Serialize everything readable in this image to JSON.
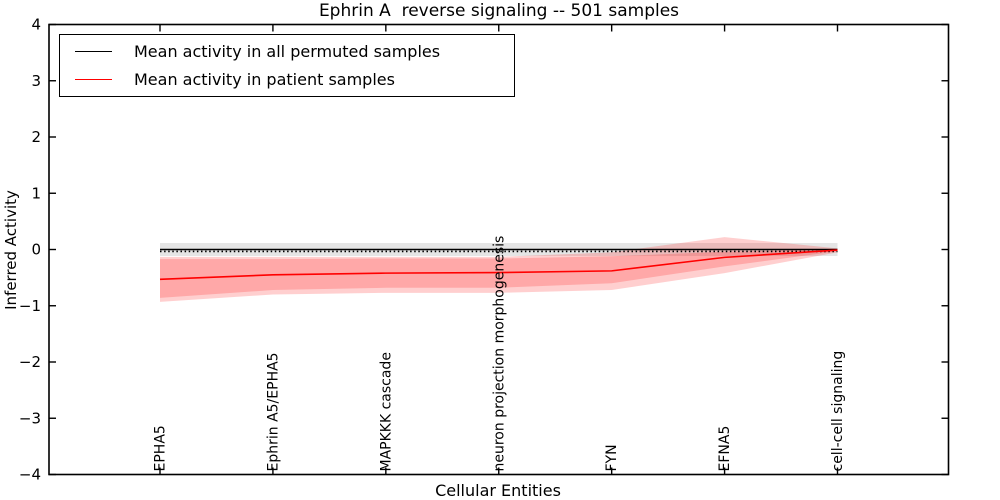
{
  "figure": {
    "title": "Ephrin A  reverse signaling -- 501 samples",
    "xlabel": "Cellular Entities",
    "ylabel": "Inferred Activity"
  },
  "legend": {
    "position": "upper left",
    "items": [
      {
        "label": "Mean activity in all permuted samples",
        "color": "#000000"
      },
      {
        "label": "Mean activity in patient samples",
        "color": "#ff0000"
      }
    ]
  },
  "chart_data": {
    "type": "line",
    "title": "Ephrin A  reverse signaling -- 501 samples",
    "xlabel": "Cellular Entities",
    "ylabel": "Inferred Activity",
    "categories": [
      "EPHA5",
      "Ephrin A5/EPHA5",
      "MAPKKK cascade",
      "neuron projection morphogenesis",
      "FYN",
      "EFNA5",
      "cell-cell signaling"
    ],
    "ylim": [
      -4,
      4
    ],
    "yticks": [
      -4,
      -3,
      -2,
      -1,
      0,
      1,
      2,
      3,
      4
    ],
    "ytick_labels": [
      "−4",
      "−3",
      "−2",
      "−1",
      "0",
      "1",
      "2",
      "3",
      "4"
    ],
    "grid": false,
    "legend_position": "upper left",
    "series": [
      {
        "name": "Mean activity in all permuted samples",
        "color": "#000000",
        "style": "solid",
        "values": [
          0,
          0,
          0,
          0,
          0,
          0,
          0
        ]
      },
      {
        "name": "permuted dotted guide",
        "color": "#000000",
        "style": "dotted",
        "values": [
          -0.035,
          -0.035,
          -0.035,
          -0.035,
          -0.035,
          -0.035,
          -0.035
        ]
      },
      {
        "name": "Mean activity in patient samples",
        "color": "#ff0000",
        "style": "solid",
        "values": [
          -0.53,
          -0.45,
          -0.42,
          -0.41,
          -0.38,
          -0.14,
          -0.01
        ]
      }
    ],
    "bands": [
      {
        "name": "permuted std band",
        "color": "rgba(0,0,0,0.10)",
        "upper": [
          0.115,
          0.115,
          0.115,
          0.115,
          0.115,
          0.115,
          0.115
        ],
        "lower": [
          -0.115,
          -0.115,
          -0.115,
          -0.115,
          -0.115,
          -0.115,
          -0.115
        ]
      },
      {
        "name": "patient band outer",
        "color": "rgba(255,0,0,0.19)",
        "upper": [
          -0.13,
          -0.13,
          -0.13,
          -0.13,
          -0.05,
          0.22,
          0.02
        ],
        "lower": [
          -0.93,
          -0.8,
          -0.77,
          -0.77,
          -0.72,
          -0.42,
          -0.05
        ]
      },
      {
        "name": "patient band inner",
        "color": "rgba(255,0,0,0.19)",
        "upper": [
          -0.17,
          -0.17,
          -0.16,
          -0.16,
          -0.12,
          -0.04,
          0.0
        ],
        "lower": [
          -0.86,
          -0.72,
          -0.68,
          -0.68,
          -0.6,
          -0.3,
          -0.03
        ]
      }
    ]
  }
}
